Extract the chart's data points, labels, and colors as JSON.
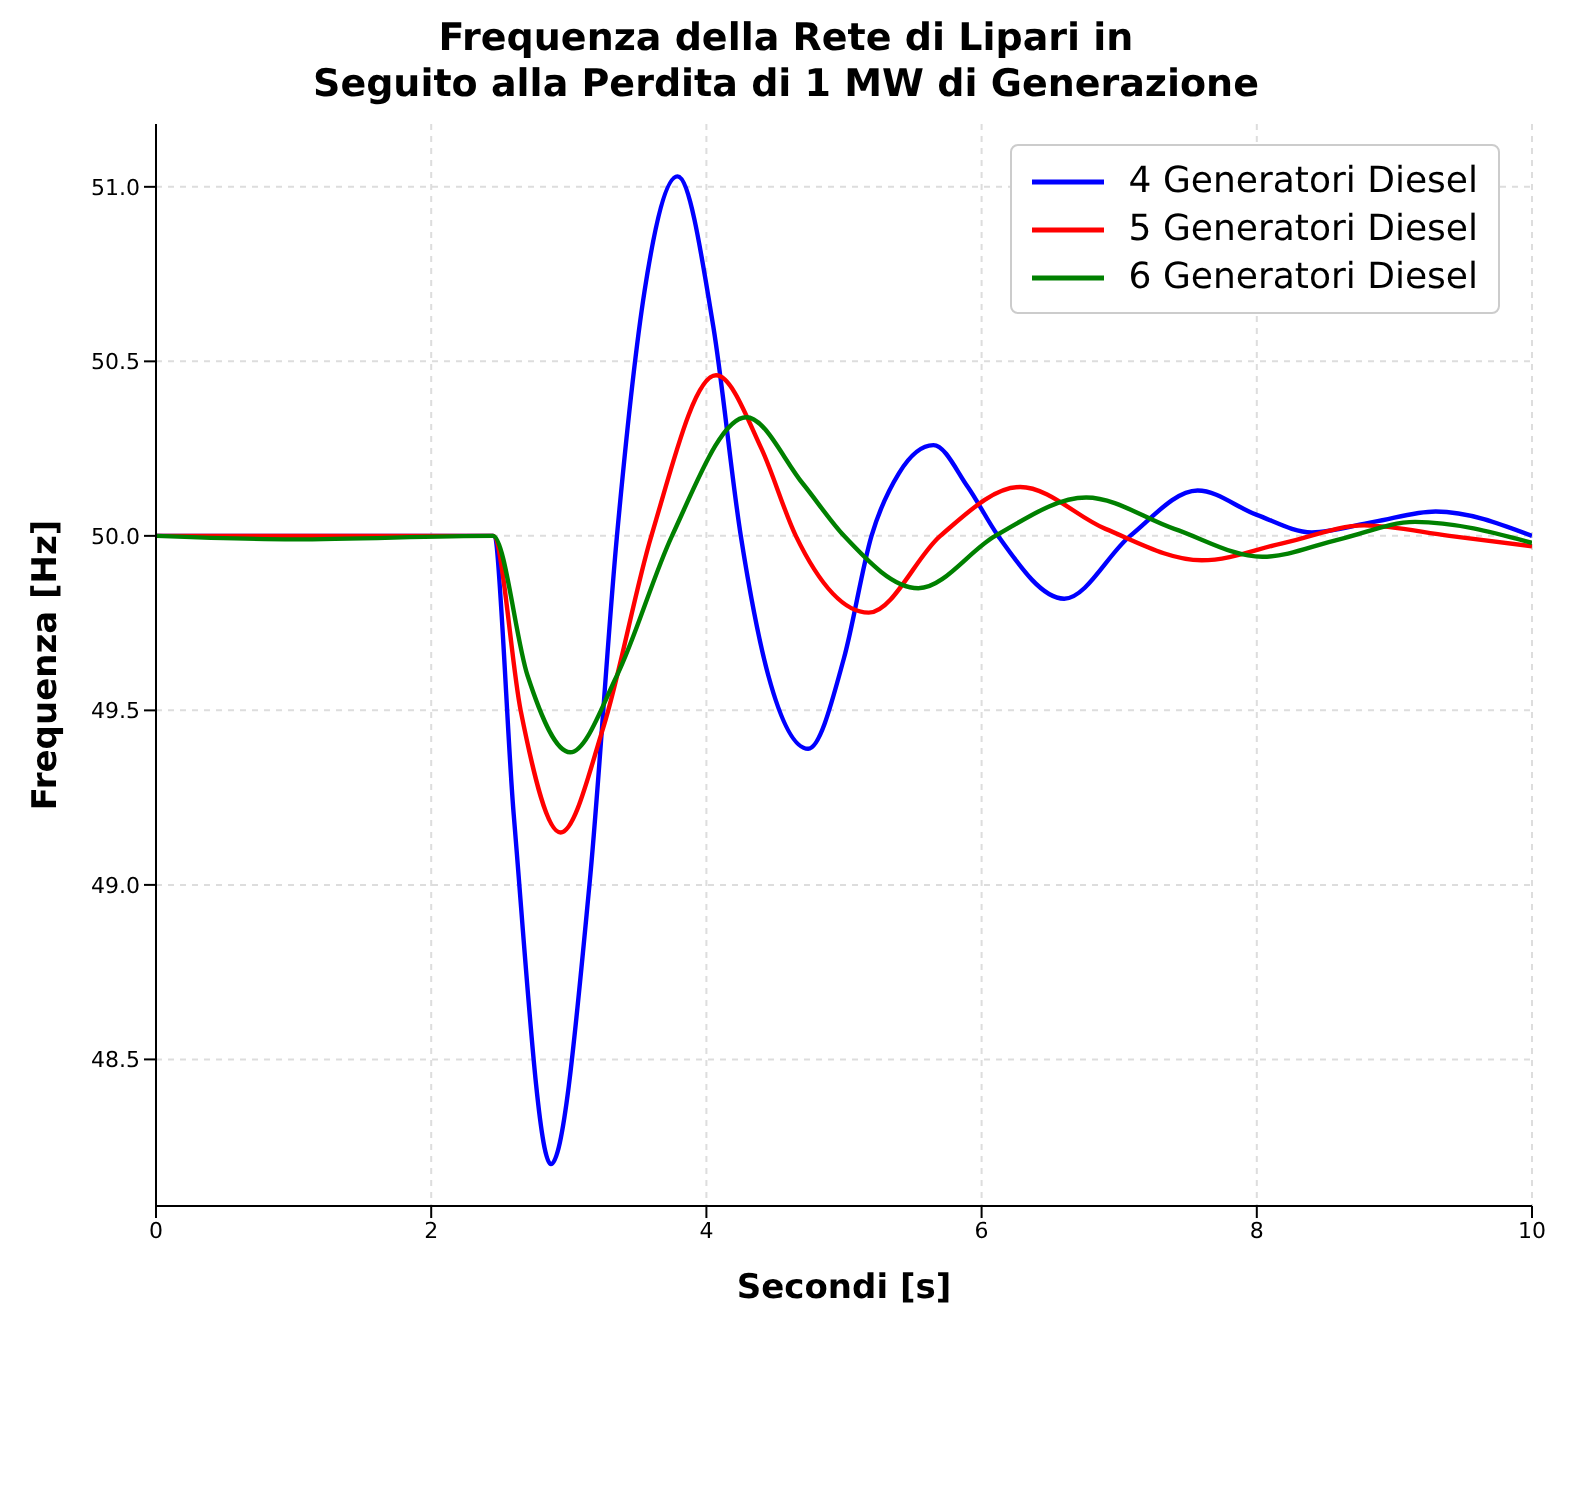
{
  "chart_data": {
    "type": "line",
    "title": "Frequenza della Rete di Lipari in\nSeguito alla Perdita di 1 MW di Generazione",
    "xlabel": "Secondi [s]",
    "ylabel": "Frequenza [Hz]",
    "xlim": [
      0,
      10
    ],
    "xticks": [
      0,
      2,
      4,
      6,
      8,
      10
    ],
    "ylim": [
      48.08,
      51.18
    ],
    "yticks": [
      {
        "value": 48.5,
        "label": "48.5"
      },
      {
        "value": 49,
        "label": "49.0"
      },
      {
        "value": 49.5,
        "label": "49.5"
      },
      {
        "value": 50,
        "label": "50.0"
      },
      {
        "value": 50.5,
        "label": "50.5"
      },
      {
        "value": 51,
        "label": "51.0"
      }
    ],
    "grid": true,
    "legend": "top right",
    "marker": "none",
    "line_style": "solid",
    "series": [
      {
        "name": "4 Generatori Diesel",
        "color": "#0000ff",
        "x": [
          0,
          1,
          2.45,
          2.6,
          2.87,
          3.15,
          3.35,
          3.55,
          3.79,
          4.05,
          4.25,
          4.45,
          4.74,
          5.0,
          5.2,
          5.4,
          5.65,
          5.9,
          6.12,
          6.6,
          7.08,
          7.57,
          8.0,
          8.4,
          8.85,
          9.3,
          10
        ],
        "values": [
          50,
          50,
          50,
          49.2,
          48.2,
          49.0,
          50.0,
          50.7,
          51.03,
          50.6,
          50.0,
          49.6,
          49.39,
          49.65,
          50.0,
          50.18,
          50.26,
          50.14,
          50.0,
          49.82,
          50.0,
          50.13,
          50.06,
          50.01,
          50.04,
          50.07,
          50.0
        ]
      },
      {
        "name": "5 Generatori Diesel",
        "color": "#ff0000",
        "x": [
          0,
          2.45,
          2.65,
          2.94,
          3.25,
          3.6,
          4.07,
          4.4,
          4.65,
          5.18,
          5.7,
          6.28,
          6.9,
          7.6,
          8.2,
          8.78,
          9.4,
          10
        ],
        "values": [
          50,
          50,
          49.5,
          49.15,
          49.45,
          50.0,
          50.46,
          50.25,
          50.0,
          49.78,
          50.0,
          50.14,
          50.02,
          49.93,
          49.98,
          50.03,
          50.0,
          49.97
        ]
      },
      {
        "name": "6 Generatori Diesel",
        "color": "#008000",
        "x": [
          0,
          1,
          2.45,
          2.7,
          3.01,
          3.35,
          3.75,
          4.29,
          4.7,
          5.0,
          5.54,
          6.1,
          6.76,
          7.4,
          8.04,
          8.6,
          9.15,
          10
        ],
        "values": [
          50,
          49.99,
          50,
          49.6,
          49.38,
          49.6,
          50.0,
          50.34,
          50.15,
          50.0,
          49.85,
          50.0,
          50.11,
          50.02,
          49.94,
          49.99,
          50.04,
          49.98
        ]
      }
    ]
  }
}
